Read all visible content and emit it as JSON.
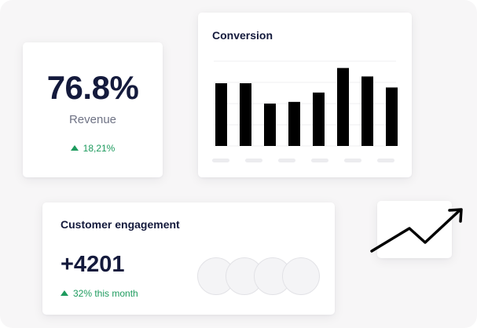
{
  "revenue_card": {
    "value": "76.8%",
    "label": "Revenue",
    "delta": "18,21%"
  },
  "conversion_card": {
    "title": "Conversion",
    "bar_levels": [
      0.74,
      0.74,
      0.5,
      0.52,
      0.63,
      0.92,
      0.82,
      0.69
    ],
    "x_placeholder_count": 6
  },
  "engagement_card": {
    "title": "Customer engagement",
    "value": "+4201",
    "delta": "32% this month",
    "avatar_count": 4
  },
  "colors": {
    "background": "#f7f6f7",
    "card": "#ffffff",
    "heading": "#141a3c",
    "muted": "#6f7385",
    "positive": "#1e9b5e",
    "bar": "#000000",
    "gridline": "#efeff2",
    "placeholder": "#ececef"
  },
  "icons": {
    "delta": "triangle-up-icon",
    "trend": "trend-up-arrow-icon"
  }
}
